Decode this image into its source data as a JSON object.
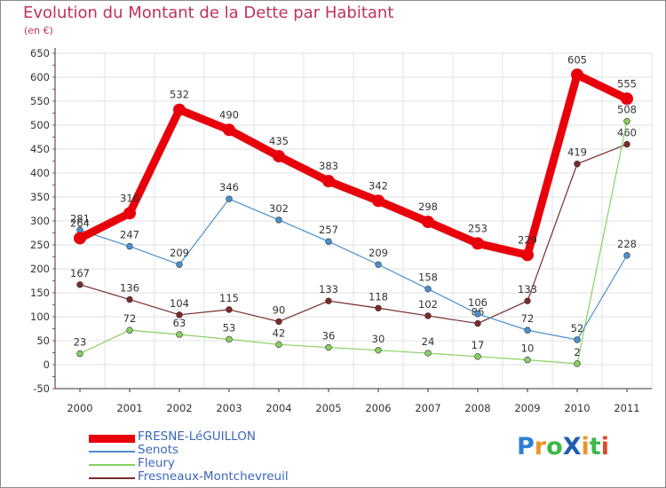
{
  "title": "Evolution du Montant de la Dette par Habitant",
  "unit": "(en €)",
  "logo": {
    "text": "ProXiti",
    "letters": [
      "P",
      "r",
      "o",
      "X",
      "i",
      "t",
      "i"
    ],
    "colors": [
      "#2f7fd1",
      "#e8962a",
      "#3db84a",
      "#1f5fb0",
      "#e8962a",
      "#3db84a",
      "#e04a2a"
    ]
  },
  "chart_data": {
    "type": "line",
    "title": "Evolution du Montant de la Dette par Habitant",
    "ylabel": "(en €)",
    "x": [
      "2000",
      "2001",
      "2002",
      "2003",
      "2004",
      "2005",
      "2006",
      "2007",
      "2008",
      "2009",
      "2010",
      "2011"
    ],
    "ylim": [
      -50,
      650
    ],
    "yticks": [
      -50,
      0,
      50,
      100,
      150,
      200,
      250,
      300,
      350,
      400,
      450,
      500,
      550,
      600,
      650
    ],
    "grid": true,
    "legend": "bottom-left",
    "series": [
      {
        "name": "FRESNE-LéGUILLON",
        "color": "#e8000b",
        "values": [
          264,
          316,
          532,
          490,
          435,
          383,
          342,
          298,
          253,
          229,
          605,
          555
        ],
        "labels": [
          "264",
          "316",
          "532",
          "490",
          "435",
          "383",
          "342",
          "298",
          "253",
          "229",
          "605",
          "555"
        ]
      },
      {
        "name": "Senots",
        "color": "#4a90d0",
        "values": [
          281,
          247,
          209,
          346,
          302,
          257,
          209,
          158,
          106,
          72,
          52,
          228
        ],
        "labels": [
          "281",
          "247",
          "209",
          "346",
          "302",
          "257",
          "209",
          "158",
          "106",
          "72",
          "52",
          "228"
        ]
      },
      {
        "name": "Fleury",
        "color": "#88d060",
        "values": [
          23,
          72,
          63,
          53,
          42,
          36,
          30,
          24,
          17,
          10,
          2,
          508
        ],
        "labels": [
          "23",
          "72",
          "63",
          "53",
          "42",
          "36",
          "30",
          "24",
          "17",
          "10",
          "2",
          "508"
        ]
      },
      {
        "name": "Fresneaux-Montchevreuil",
        "color": "#7a2a2a",
        "values": [
          167,
          136,
          104,
          115,
          90,
          133,
          118,
          102,
          86,
          133,
          419,
          460
        ],
        "labels": [
          "167",
          "136",
          "104",
          "115",
          "90",
          "133",
          "118",
          "102",
          "86",
          "133",
          "419",
          "460"
        ]
      }
    ]
  }
}
